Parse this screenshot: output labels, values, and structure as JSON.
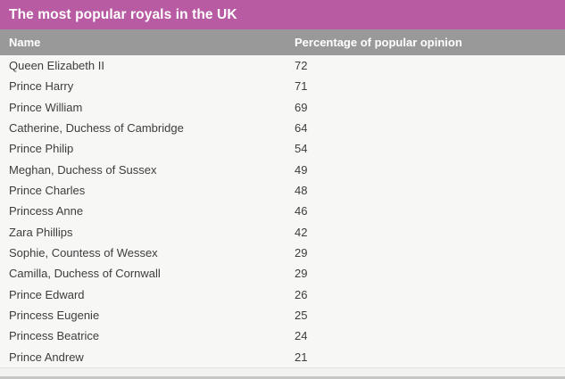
{
  "table": {
    "title": "The most popular royals in the UK",
    "columns": [
      "Name",
      "Percentage of popular opinion"
    ],
    "rows": [
      {
        "name": "Queen Elizabeth II",
        "value": "72"
      },
      {
        "name": "Prince Harry",
        "value": "71"
      },
      {
        "name": "Prince William",
        "value": "69"
      },
      {
        "name": "Catherine, Duchess of Cambridge",
        "value": "64"
      },
      {
        "name": "Prince Philip",
        "value": "54"
      },
      {
        "name": "Meghan, Duchess of Sussex",
        "value": "49"
      },
      {
        "name": "Prince Charles",
        "value": "48"
      },
      {
        "name": "Princess Anne",
        "value": "46"
      },
      {
        "name": "Zara Phillips",
        "value": "42"
      },
      {
        "name": "Sophie, Countess of Wessex",
        "value": "29"
      },
      {
        "name": "Camilla, Duchess of Cornwall",
        "value": "29"
      },
      {
        "name": "Prince Edward",
        "value": "26"
      },
      {
        "name": "Princess Eugenie",
        "value": "25"
      },
      {
        "name": "Princess Beatrice",
        "value": "24"
      },
      {
        "name": "Prince Andrew",
        "value": "21"
      }
    ]
  },
  "colors": {
    "accent_pink": "#b95ba3",
    "header_gray": "#999999",
    "table_background": "#f7f7f6",
    "page_band": "#f2f2f1",
    "bottom_bar": "#c6c6c5",
    "row_text": "#3d3d3d",
    "header_text": "#ffffff"
  },
  "chart_data": {
    "type": "table",
    "title": "The most popular royals in the UK",
    "columns": [
      "Name",
      "Percentage of popular opinion"
    ],
    "categories": [
      "Queen Elizabeth II",
      "Prince Harry",
      "Prince William",
      "Catherine, Duchess of Cambridge",
      "Prince Philip",
      "Meghan, Duchess of Sussex",
      "Prince Charles",
      "Princess Anne",
      "Zara Phillips",
      "Sophie, Countess of Wessex",
      "Camilla, Duchess of Cornwall",
      "Prince Edward",
      "Princess Eugenie",
      "Princess Beatrice",
      "Prince Andrew"
    ],
    "values": [
      72,
      71,
      69,
      64,
      54,
      49,
      48,
      46,
      42,
      29,
      29,
      26,
      25,
      24,
      21
    ],
    "value_unit": "percent",
    "layout": "two-column table, full-bleed colored title bar, gray column header"
  }
}
